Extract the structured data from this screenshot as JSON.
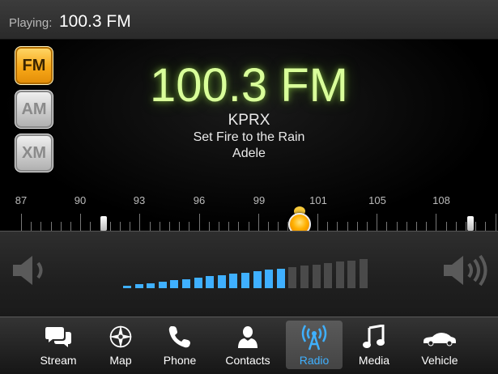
{
  "header": {
    "playing_label": "Playing:",
    "playing_value": "100.3 FM"
  },
  "bands": [
    {
      "label": "FM",
      "active": true
    },
    {
      "label": "AM",
      "active": false
    },
    {
      "label": "XM",
      "active": false
    }
  ],
  "now_playing": {
    "frequency": "100.3 FM",
    "station": "KPRX",
    "song": "Set Fire to the Rain",
    "artist": "Adele"
  },
  "tuner": {
    "scale_labels": [
      "87",
      "90",
      "93",
      "96",
      "99",
      "101",
      "105",
      "108"
    ],
    "current_frequency": 100.3
  },
  "volume": {
    "level": 14,
    "max": 21
  },
  "tabs": [
    {
      "label": "Stream",
      "icon": "chat-bubbles-icon",
      "active": false
    },
    {
      "label": "Map",
      "icon": "compass-icon",
      "active": false
    },
    {
      "label": "Phone",
      "icon": "phone-icon",
      "active": false
    },
    {
      "label": "Contacts",
      "icon": "person-icon",
      "active": false
    },
    {
      "label": "Radio",
      "icon": "radio-tower-icon",
      "active": true
    },
    {
      "label": "Media",
      "icon": "music-note-icon",
      "active": false
    },
    {
      "label": "Vehicle",
      "icon": "car-icon",
      "active": false
    }
  ],
  "colors": {
    "frequency_glow": "#d9ff9a",
    "accent_blue": "#3fb0ff",
    "band_active": "#f7a818"
  }
}
